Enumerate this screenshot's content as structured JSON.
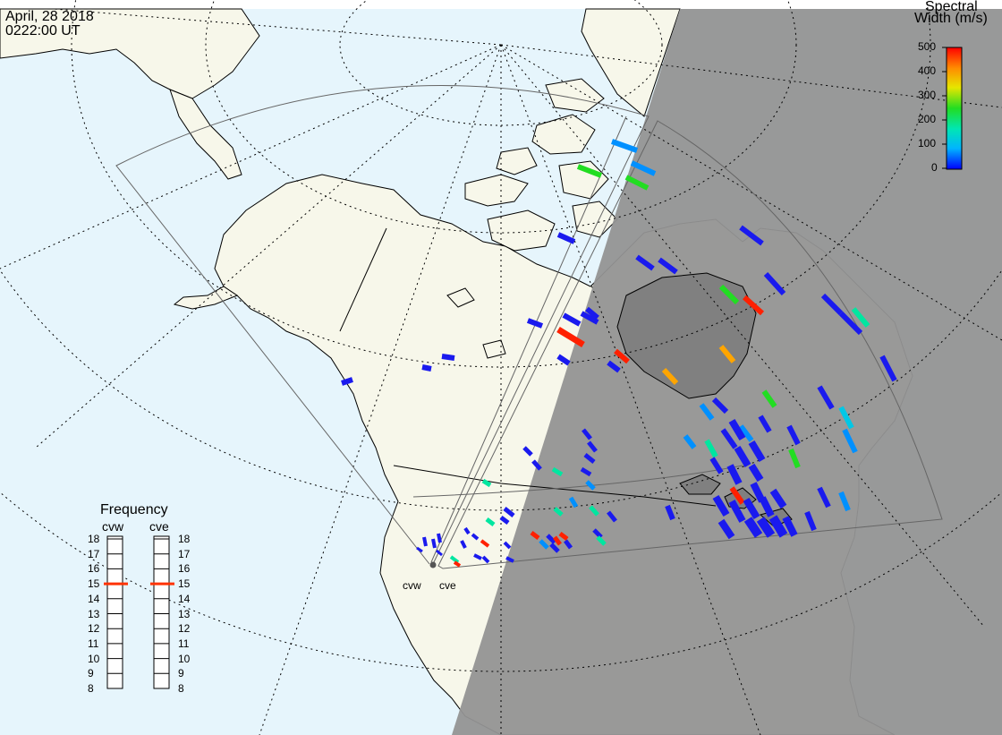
{
  "header": {
    "date": "April, 28 2018",
    "time": "0222:00 UT"
  },
  "colorbar": {
    "title_line1": "Spectral",
    "title_line2": "Width (m/s)",
    "ticks": [
      "500",
      "400",
      "300",
      "200",
      "100",
      "0"
    ],
    "gradient_colors": [
      "#ff0000",
      "#ff8c00",
      "#e6e600",
      "#22dd22",
      "#00e6b4",
      "#00b4ff",
      "#0000ff"
    ]
  },
  "frequency_panel": {
    "title": "Frequency",
    "radar_left": "cvw",
    "radar_right": "cve",
    "scale": [
      "18",
      "17",
      "16",
      "15",
      "14",
      "13",
      "12",
      "11",
      "10",
      "9",
      "8"
    ],
    "cvw_value_mhz": 15,
    "cve_value_mhz": 15,
    "marker_color": "#ff3300"
  },
  "radar_sites": {
    "west_label": "cvw",
    "east_label": "cve"
  },
  "map_colors": {
    "ocean": "#e6f5fc",
    "land_day": "#f7f7ea",
    "night": "#949494",
    "coastline": "#000000",
    "fov_outline": "#777777"
  }
}
